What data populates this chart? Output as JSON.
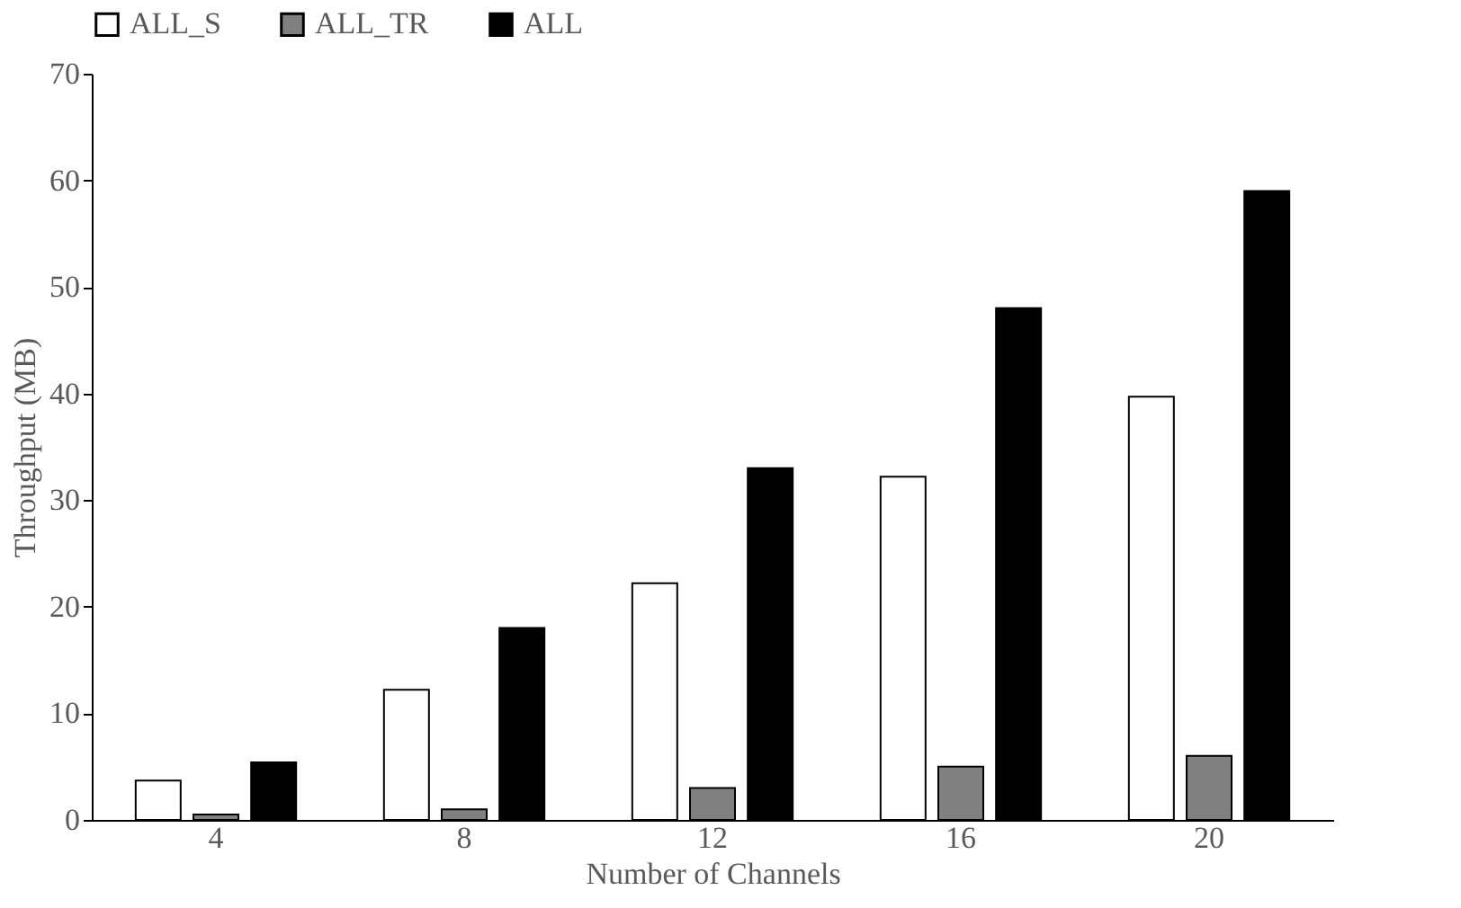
{
  "chart_data": {
    "type": "bar",
    "xlabel": "Number of Channels",
    "ylabel": "Throughput (MB)",
    "categories": [
      "4",
      "8",
      "12",
      "16",
      "20"
    ],
    "series": [
      {
        "name": "ALL_S",
        "color": "#ffffff",
        "values": [
          3.7,
          12.2,
          22.2,
          32.2,
          39.7
        ]
      },
      {
        "name": "ALL_TR",
        "color": "#808080",
        "values": [
          0.5,
          1,
          3,
          5,
          6
        ]
      },
      {
        "name": "ALL",
        "color": "#000000",
        "values": [
          5.4,
          18,
          33,
          48,
          59
        ]
      }
    ],
    "ylim": [
      0,
      70
    ],
    "yticks": [
      0,
      10,
      20,
      30,
      40,
      50,
      60,
      70
    ],
    "grid": false,
    "legend": "top"
  }
}
